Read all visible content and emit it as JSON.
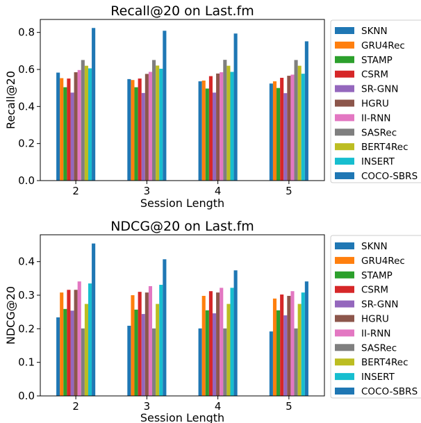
{
  "chart_data": [
    {
      "type": "bar",
      "title": "Recall@20 on Last.fm",
      "xlabel": "Session Length",
      "ylabel": "Recall@20",
      "categories": [
        "2",
        "3",
        "4",
        "5"
      ],
      "yticks": [
        "0.0",
        "0.2",
        "0.4",
        "0.6",
        "0.8"
      ],
      "ylim": [
        0,
        0.87
      ],
      "grid": false,
      "legend_position": "right",
      "series": [
        {
          "name": "SKNN",
          "color": "#1f77b4",
          "values": [
            0.583,
            0.548,
            0.536,
            0.524
          ]
        },
        {
          "name": "GRU4Rec",
          "color": "#ff7f0e",
          "values": [
            0.553,
            0.543,
            0.54,
            0.536
          ]
        },
        {
          "name": "STAMP",
          "color": "#2ca02c",
          "values": [
            0.504,
            0.504,
            0.497,
            0.5
          ]
        },
        {
          "name": "CSRM",
          "color": "#d62728",
          "values": [
            0.551,
            0.551,
            0.564,
            0.555
          ]
        },
        {
          "name": "SR-GNN",
          "color": "#9467bd",
          "values": [
            0.475,
            0.473,
            0.475,
            0.472
          ]
        },
        {
          "name": "HGRU",
          "color": "#8c564b",
          "values": [
            0.585,
            0.576,
            0.578,
            0.566
          ]
        },
        {
          "name": "II-RNN",
          "color": "#e377c2",
          "values": [
            0.597,
            0.587,
            0.585,
            0.572
          ]
        },
        {
          "name": "SASRec",
          "color": "#7f7f7f",
          "values": [
            0.651,
            0.651,
            0.652,
            0.651
          ]
        },
        {
          "name": "BERT4Rec",
          "color": "#bcbd22",
          "values": [
            0.62,
            0.621,
            0.62,
            0.62
          ]
        },
        {
          "name": "INSERT",
          "color": "#17becf",
          "values": [
            0.606,
            0.604,
            0.587,
            0.577
          ]
        },
        {
          "name": "COCO-SBRS",
          "color": "#1f77b4",
          "values": [
            0.824,
            0.809,
            0.794,
            0.752
          ]
        }
      ]
    },
    {
      "type": "bar",
      "title": "NDCG@20 on Last.fm",
      "xlabel": "Session Length",
      "ylabel": "NDCG@20",
      "categories": [
        "2",
        "3",
        "4",
        "5"
      ],
      "yticks": [
        "0.0",
        "0.1",
        "0.2",
        "0.3",
        "0.4"
      ],
      "ylim": [
        0,
        0.48
      ],
      "grid": false,
      "legend_position": "right",
      "series": [
        {
          "name": "SKNN",
          "color": "#1f77b4",
          "values": [
            0.234,
            0.209,
            0.201,
            0.192
          ]
        },
        {
          "name": "GRU4Rec",
          "color": "#ff7f0e",
          "values": [
            0.308,
            0.3,
            0.298,
            0.29
          ]
        },
        {
          "name": "STAMP",
          "color": "#2ca02c",
          "values": [
            0.259,
            0.257,
            0.255,
            0.255
          ]
        },
        {
          "name": "CSRM",
          "color": "#d62728",
          "values": [
            0.316,
            0.31,
            0.312,
            0.302
          ]
        },
        {
          "name": "SR-GNN",
          "color": "#9467bd",
          "values": [
            0.254,
            0.244,
            0.246,
            0.24
          ]
        },
        {
          "name": "HGRU",
          "color": "#8c564b",
          "values": [
            0.316,
            0.308,
            0.308,
            0.298
          ]
        },
        {
          "name": "II-RNN",
          "color": "#e377c2",
          "values": [
            0.341,
            0.327,
            0.322,
            0.312
          ]
        },
        {
          "name": "SASRec",
          "color": "#7f7f7f",
          "values": [
            0.201,
            0.201,
            0.201,
            0.201
          ]
        },
        {
          "name": "BERT4Rec",
          "color": "#bcbd22",
          "values": [
            0.274,
            0.274,
            0.274,
            0.274
          ]
        },
        {
          "name": "INSERT",
          "color": "#17becf",
          "values": [
            0.335,
            0.331,
            0.322,
            0.308
          ]
        },
        {
          "name": "COCO-SBRS",
          "color": "#1f77b4",
          "values": [
            0.454,
            0.407,
            0.374,
            0.341
          ]
        }
      ]
    }
  ]
}
